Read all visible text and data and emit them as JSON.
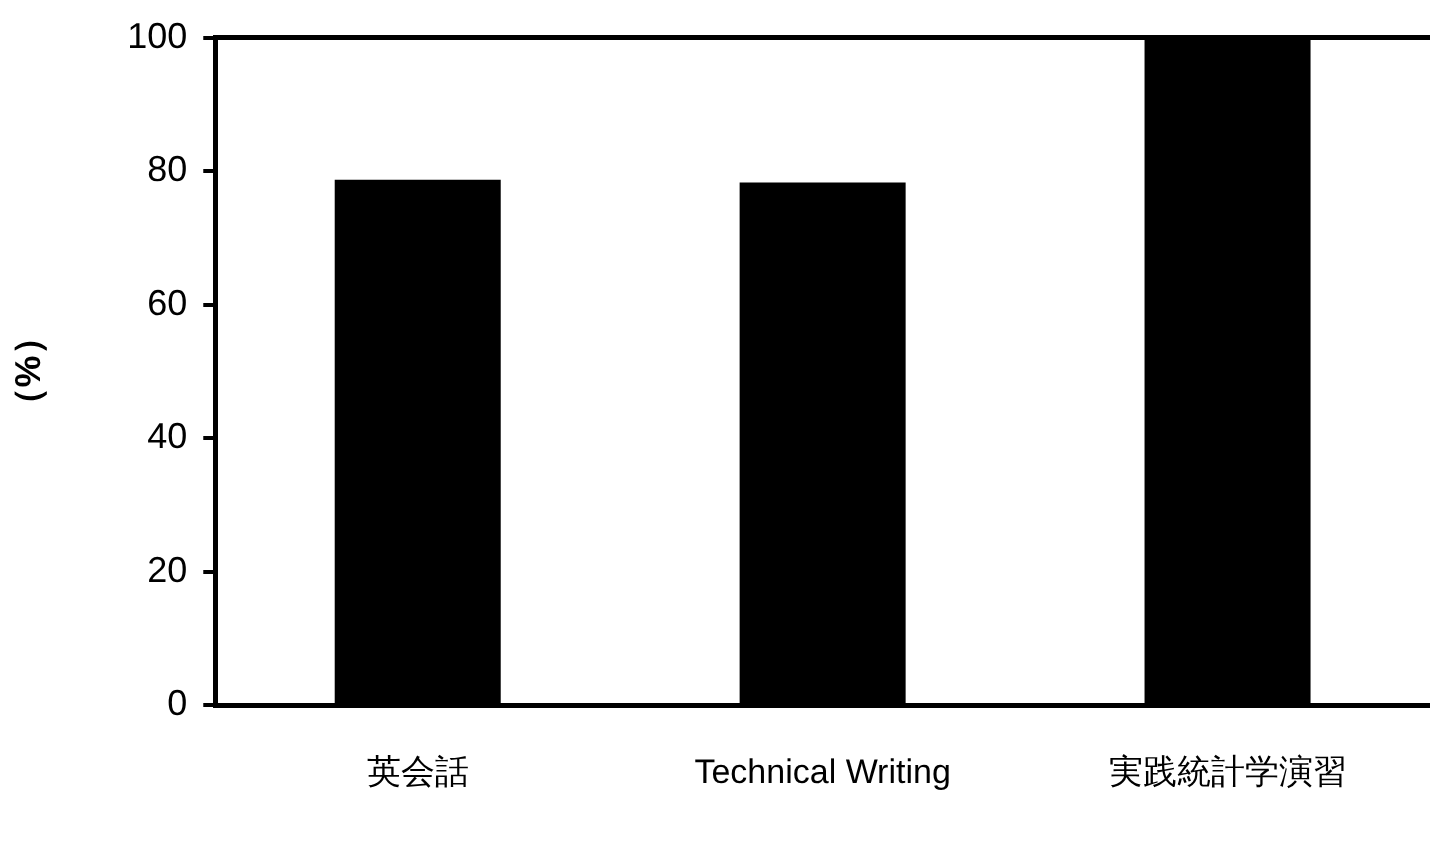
{
  "chart_data": {
    "type": "bar",
    "categories": [
      "英会話",
      "Technical Writing",
      "実践統計学演習"
    ],
    "values": [
      78.7,
      78.3,
      100
    ],
    "color": "#000000",
    "ylabel": "（%）",
    "ylim": [
      0,
      100
    ],
    "yticks": [
      0,
      20,
      40,
      60,
      80,
      100
    ],
    "grid": false,
    "legend": false
  }
}
